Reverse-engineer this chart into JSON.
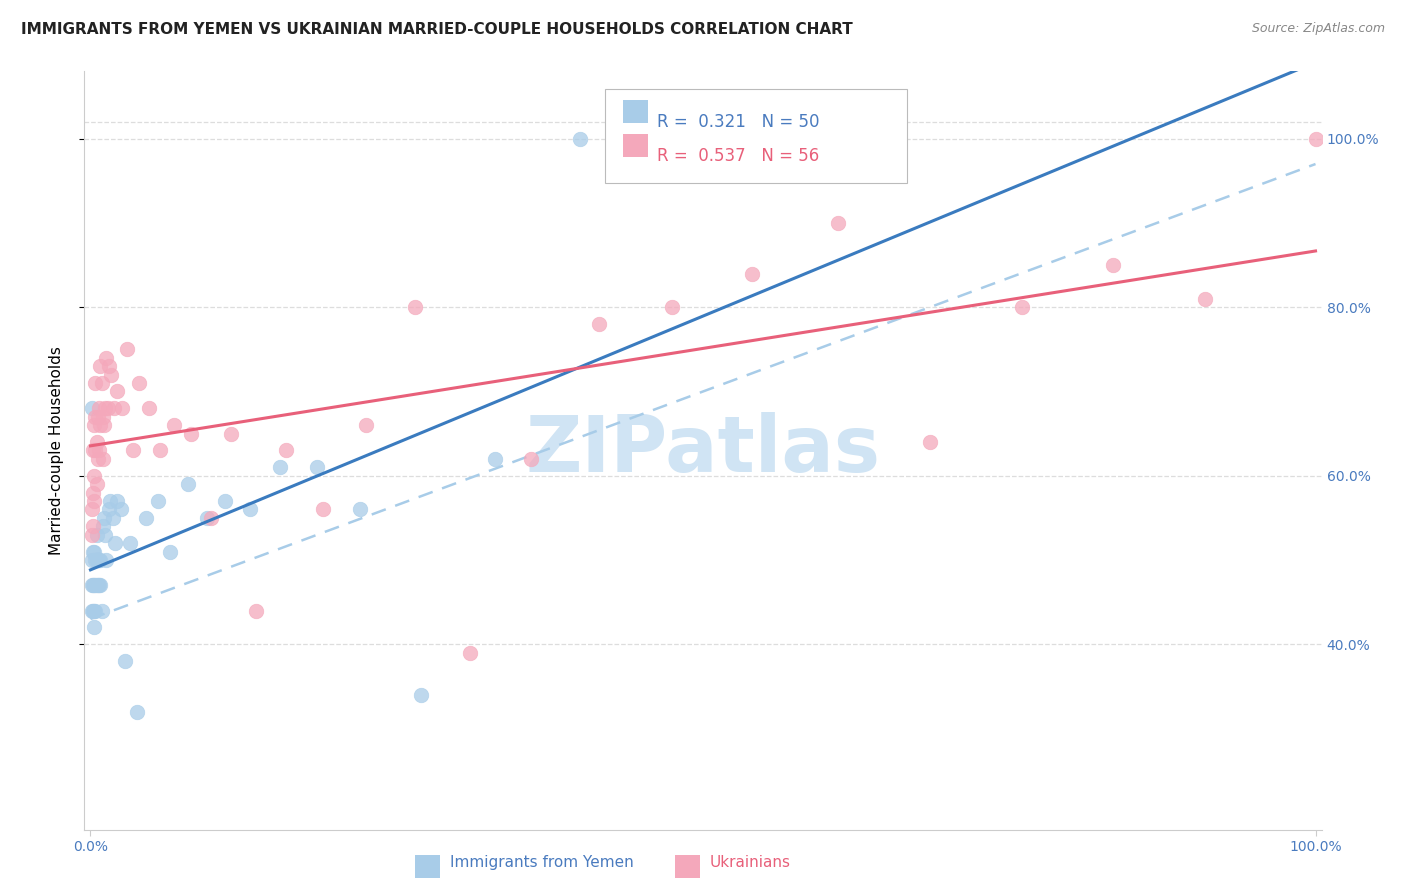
{
  "title": "IMMIGRANTS FROM YEMEN VS UKRAINIAN MARRIED-COUPLE HOUSEHOLDS CORRELATION CHART",
  "source": "Source: ZipAtlas.com",
  "ylabel": "Married-couple Households",
  "xlabel_blue": "Immigrants from Yemen",
  "xlabel_pink": "Ukrainians",
  "watermark": "ZIPatlas",
  "legend_blue_r": "0.321",
  "legend_blue_n": "50",
  "legend_pink_r": "0.537",
  "legend_pink_n": "56",
  "blue_scatter_color": "#a8cce8",
  "pink_scatter_color": "#f4a8bb",
  "blue_line_color": "#3a7bbf",
  "pink_line_color": "#e8607a",
  "dashed_line_color": "#a8cce8",
  "blue_text_color": "#4a7bbf",
  "pink_text_color": "#e8607a",
  "axis_color": "#4a7bbf",
  "grid_color": "#dddddd",
  "title_color": "#222222",
  "source_color": "#888888",
  "watermark_color": "#d0e4f4",
  "blue_x": [
    0.001,
    0.001,
    0.001,
    0.001,
    0.002,
    0.002,
    0.002,
    0.003,
    0.003,
    0.003,
    0.003,
    0.004,
    0.004,
    0.004,
    0.005,
    0.005,
    0.005,
    0.006,
    0.006,
    0.007,
    0.007,
    0.008,
    0.008,
    0.009,
    0.01,
    0.011,
    0.012,
    0.013,
    0.015,
    0.016,
    0.018,
    0.02,
    0.022,
    0.025,
    0.028,
    0.032,
    0.038,
    0.045,
    0.055,
    0.065,
    0.08,
    0.095,
    0.11,
    0.13,
    0.155,
    0.185,
    0.22,
    0.27,
    0.33,
    0.4
  ],
  "blue_y": [
    0.68,
    0.5,
    0.47,
    0.44,
    0.51,
    0.47,
    0.44,
    0.51,
    0.47,
    0.44,
    0.42,
    0.5,
    0.47,
    0.44,
    0.53,
    0.5,
    0.47,
    0.5,
    0.47,
    0.5,
    0.47,
    0.5,
    0.47,
    0.44,
    0.54,
    0.55,
    0.53,
    0.5,
    0.56,
    0.57,
    0.55,
    0.52,
    0.57,
    0.56,
    0.38,
    0.52,
    0.32,
    0.55,
    0.57,
    0.51,
    0.59,
    0.55,
    0.57,
    0.56,
    0.61,
    0.61,
    0.56,
    0.34,
    0.62,
    1.0
  ],
  "pink_x": [
    0.001,
    0.001,
    0.002,
    0.002,
    0.002,
    0.003,
    0.003,
    0.003,
    0.004,
    0.004,
    0.004,
    0.005,
    0.005,
    0.006,
    0.006,
    0.007,
    0.007,
    0.008,
    0.008,
    0.009,
    0.01,
    0.01,
    0.011,
    0.012,
    0.013,
    0.014,
    0.015,
    0.017,
    0.019,
    0.022,
    0.026,
    0.03,
    0.035,
    0.04,
    0.048,
    0.057,
    0.068,
    0.082,
    0.098,
    0.115,
    0.135,
    0.16,
    0.19,
    0.225,
    0.265,
    0.31,
    0.36,
    0.415,
    0.475,
    0.54,
    0.61,
    0.685,
    0.76,
    0.835,
    0.91,
    1.0
  ],
  "pink_y": [
    0.53,
    0.56,
    0.54,
    0.58,
    0.63,
    0.57,
    0.6,
    0.66,
    0.63,
    0.67,
    0.71,
    0.59,
    0.64,
    0.62,
    0.67,
    0.63,
    0.68,
    0.66,
    0.73,
    0.71,
    0.62,
    0.67,
    0.66,
    0.68,
    0.74,
    0.68,
    0.73,
    0.72,
    0.68,
    0.7,
    0.68,
    0.75,
    0.63,
    0.71,
    0.68,
    0.63,
    0.66,
    0.65,
    0.55,
    0.65,
    0.44,
    0.63,
    0.56,
    0.66,
    0.8,
    0.39,
    0.62,
    0.78,
    0.8,
    0.84,
    0.9,
    0.64,
    0.8,
    0.85,
    0.81,
    1.0
  ]
}
